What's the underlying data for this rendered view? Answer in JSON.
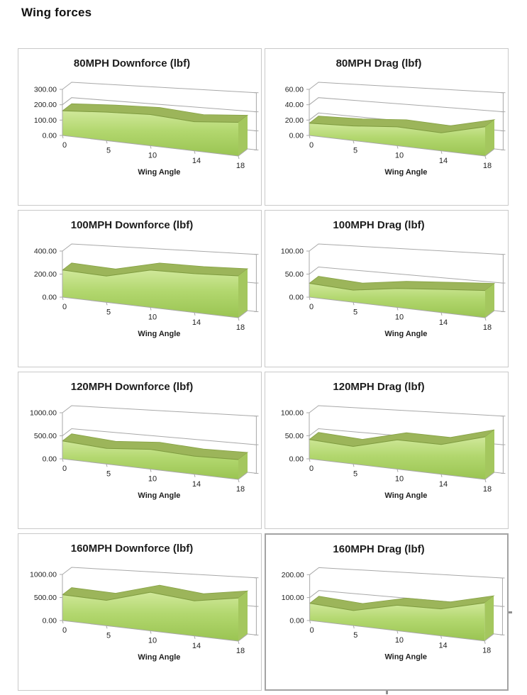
{
  "page": {
    "title": "Wing forces"
  },
  "colors": {
    "axis": "#a8a8a8",
    "area_top": "#9cb55a",
    "area_top_edge": "#86a144",
    "area_front_light": "#d0e89a",
    "area_front_mid": "#b2d76e",
    "area_front_dark": "#9ac452",
    "area_side": "#a4c75e",
    "area_front_edge": "#7e9b3f",
    "box_border": "#c9c9c9",
    "selected_border": "#a3a3a3",
    "text": "#1f1f1f"
  },
  "selected_chart_index": 7,
  "chart_data": [
    {
      "type": "area",
      "title": "80MPH Downforce (lbf)",
      "xlabel": "Wing Angle",
      "categories": [
        "0",
        "5",
        "10",
        "14",
        "18"
      ],
      "values": [
        160,
        175,
        182,
        162,
        178
      ],
      "y_ticks": [
        "0.00",
        "100.00",
        "200.00",
        "300.00"
      ],
      "ymax": 300,
      "ylim": [
        0,
        300
      ],
      "grid": true,
      "legend": "none"
    },
    {
      "type": "area",
      "title": "80MPH Drag (lbf)",
      "xlabel": "Wing Angle",
      "categories": [
        "0",
        "5",
        "10",
        "14",
        "18"
      ],
      "values": [
        16,
        18,
        22,
        20,
        31
      ],
      "y_ticks": [
        "0.00",
        "20.00",
        "40.00",
        "60.00"
      ],
      "ymax": 60,
      "ylim": [
        0,
        60
      ],
      "grid": true,
      "legend": "none"
    },
    {
      "type": "area",
      "title": "100MPH Downforce (lbf)",
      "xlabel": "Wing Angle",
      "categories": [
        "0",
        "5",
        "10",
        "14",
        "18"
      ],
      "values": [
        235,
        215,
        290,
        288,
        295
      ],
      "y_ticks": [
        "0.00",
        "200.00",
        "400.00"
      ],
      "ymax": 400,
      "ylim": [
        0,
        400
      ],
      "grid": true,
      "legend": "none"
    },
    {
      "type": "area",
      "title": "100MPH Drag (lbf)",
      "xlabel": "Wing Angle",
      "categories": [
        "0",
        "5",
        "10",
        "14",
        "18"
      ],
      "values": [
        30,
        25,
        37,
        43,
        48
      ],
      "y_ticks": [
        "0.00",
        "50.00",
        "100.00"
      ],
      "ymax": 100,
      "ylim": [
        0,
        100
      ],
      "grid": true,
      "legend": "none"
    },
    {
      "type": "area",
      "title": "120MPH Downforce (lbf)",
      "xlabel": "Wing Angle",
      "categories": [
        "0",
        "5",
        "10",
        "14",
        "18"
      ],
      "values": [
        390,
        320,
        385,
        335,
        350
      ],
      "y_ticks": [
        "0.00",
        "500.00",
        "1000.00"
      ],
      "ymax": 1000,
      "ylim": [
        0,
        1000
      ],
      "grid": true,
      "legend": "none"
    },
    {
      "type": "area",
      "title": "120MPH Drag (lbf)",
      "xlabel": "Wing Angle",
      "categories": [
        "0",
        "5",
        "10",
        "14",
        "18"
      ],
      "values": [
        42,
        36,
        57,
        55,
        75
      ],
      "y_ticks": [
        "0.00",
        "50.00",
        "100.00"
      ],
      "ymax": 100,
      "ylim": [
        0,
        100
      ],
      "grid": true,
      "legend": "none"
    },
    {
      "type": "area",
      "title": "160MPH Downforce (lbf)",
      "xlabel": "Wing Angle",
      "categories": [
        "0",
        "5",
        "10",
        "14",
        "18"
      ],
      "values": [
        560,
        520,
        750,
        650,
        760
      ],
      "y_ticks": [
        "0.00",
        "500.00",
        "1000.00"
      ],
      "ymax": 1000,
      "ylim": [
        0,
        1000
      ],
      "grid": true,
      "legend": "none"
    },
    {
      "type": "area",
      "title": "160MPH Drag (lbf)",
      "xlabel": "Wing Angle",
      "categories": [
        "0",
        "5",
        "10",
        "14",
        "18"
      ],
      "values": [
        75,
        62,
        100,
        100,
        135
      ],
      "y_ticks": [
        "0.00",
        "100.00",
        "200.00"
      ],
      "ymax": 200,
      "ylim": [
        0,
        200
      ],
      "grid": true,
      "legend": "none"
    }
  ]
}
